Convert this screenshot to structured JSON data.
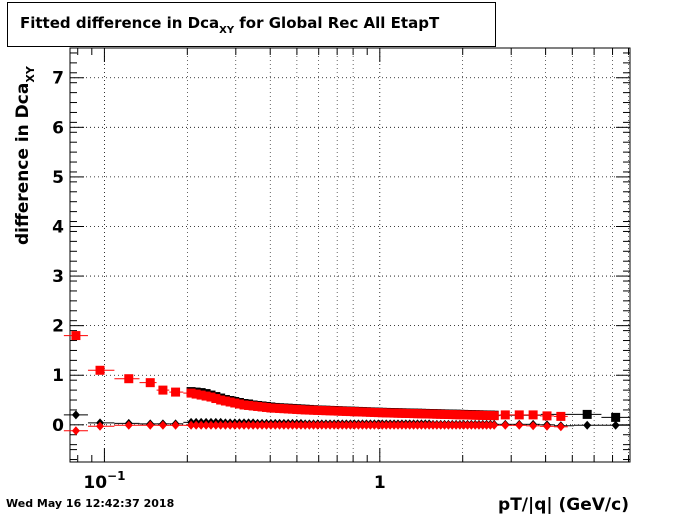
{
  "chart_data": {
    "type": "scatter",
    "title_main": "Fitted difference in Dca",
    "title_sub": "XY",
    "title_rest": " for Global Rec All EtapT",
    "xlabel": "pT/|q| (GeV/c)",
    "ylabel_main": "difference in Dca",
    "ylabel_sub": "XY",
    "x_scale": "log",
    "xlim": [
      0.075,
      8.1
    ],
    "ylim": [
      -0.75,
      7.6
    ],
    "grid": true,
    "y_ticks": [
      {
        "value": 0,
        "label": "0"
      },
      {
        "value": 1,
        "label": "1"
      },
      {
        "value": 2,
        "label": "2"
      },
      {
        "value": 3,
        "label": "3"
      },
      {
        "value": 4,
        "label": "4"
      },
      {
        "value": 5,
        "label": "5"
      },
      {
        "value": 6,
        "label": "6"
      },
      {
        "value": 7,
        "label": "7"
      }
    ],
    "x_tick_labels": [
      {
        "value": 0.1,
        "base": "10",
        "exp": "−1"
      },
      {
        "value": 1,
        "base": "1",
        "exp": ""
      }
    ],
    "series": [
      {
        "marker": "square",
        "color": "#000000",
        "x": [
          0.2064,
          0.2153,
          0.2245,
          0.234,
          0.2438,
          0.2539,
          0.2643,
          0.275,
          0.2861,
          0.2975,
          0.3092,
          0.3213,
          0.3338,
          0.3467,
          0.36,
          0.3736,
          0.3877,
          0.4022,
          0.4172,
          0.4326,
          0.4485,
          0.4649,
          0.4818,
          0.4993,
          0.5172,
          0.5358,
          0.5549,
          0.5746,
          0.5949,
          0.6158,
          0.6374,
          0.6597,
          0.6826,
          0.7063,
          0.7307,
          0.7558,
          0.7818,
          0.8085,
          0.8361,
          0.8646,
          0.8939,
          0.9242,
          0.9554,
          0.9876,
          1.0208,
          1.055,
          1.0903,
          1.1267,
          1.1643,
          1.2031,
          1.2431,
          1.2843,
          1.3268,
          1.3707,
          1.4159,
          1.4625,
          1.5106,
          1.5602,
          1.6113,
          1.6641,
          1.7185,
          1.7745,
          1.8324,
          1.892,
          1.9535,
          2.017,
          2.0824,
          2.1499,
          2.2195,
          2.2913,
          2.3653,
          2.4416,
          2.5203,
          2.6015,
          5.663,
          7.184
        ],
        "y": [
          0.67,
          0.66,
          0.65,
          0.63,
          0.6,
          0.57,
          0.54,
          0.51,
          0.49,
          0.47,
          0.45,
          0.43,
          0.42,
          0.4,
          0.39,
          0.38,
          0.37,
          0.36,
          0.35,
          0.345,
          0.34,
          0.335,
          0.33,
          0.325,
          0.32,
          0.315,
          0.31,
          0.305,
          0.3,
          0.297,
          0.294,
          0.291,
          0.288,
          0.285,
          0.282,
          0.279,
          0.276,
          0.273,
          0.27,
          0.267,
          0.264,
          0.261,
          0.258,
          0.255,
          0.252,
          0.25,
          0.248,
          0.246,
          0.244,
          0.242,
          0.24,
          0.238,
          0.236,
          0.234,
          0.232,
          0.23,
          0.228,
          0.226,
          0.224,
          0.222,
          0.22,
          0.218,
          0.216,
          0.214,
          0.212,
          0.21,
          0.208,
          0.206,
          0.204,
          0.202,
          0.2,
          0.198,
          0.196,
          0.194,
          0.21,
          0.15
        ]
      },
      {
        "marker": "square",
        "color": "#ff0000",
        "x": [
          0.0788,
          0.0964,
          0.1226,
          0.1467,
          0.1631,
          0.1813,
          0.2064,
          0.2153,
          0.2245,
          0.234,
          0.2438,
          0.2539,
          0.2643,
          0.275,
          0.2861,
          0.2975,
          0.3092,
          0.3213,
          0.3338,
          0.3467,
          0.36,
          0.3736,
          0.3877,
          0.4022,
          0.4172,
          0.4326,
          0.4485,
          0.4649,
          0.4818,
          0.4993,
          0.5172,
          0.5358,
          0.5549,
          0.5746,
          0.5949,
          0.6158,
          0.6374,
          0.6597,
          0.6826,
          0.7063,
          0.7307,
          0.7558,
          0.7818,
          0.8085,
          0.8361,
          0.8646,
          0.8939,
          0.9242,
          0.9554,
          0.9876,
          1.0208,
          1.055,
          1.0903,
          1.1267,
          1.1643,
          1.2031,
          1.2431,
          1.2843,
          1.3268,
          1.3707,
          1.4159,
          1.4625,
          1.5106,
          1.5602,
          1.6113,
          1.6641,
          1.7185,
          1.7745,
          1.8324,
          1.892,
          1.9535,
          2.017,
          2.0824,
          2.1499,
          2.2195,
          2.2913,
          2.3653,
          2.4416,
          2.5203,
          2.6015,
          2.855,
          3.2086,
          3.6036,
          4.0467,
          4.5436
        ],
        "y": [
          1.8,
          1.1,
          0.93,
          0.85,
          0.7,
          0.66,
          0.64,
          0.62,
          0.6,
          0.58,
          0.56,
          0.53,
          0.5,
          0.48,
          0.46,
          0.44,
          0.42,
          0.4,
          0.39,
          0.38,
          0.37,
          0.36,
          0.35,
          0.34,
          0.335,
          0.33,
          0.325,
          0.32,
          0.315,
          0.31,
          0.305,
          0.3,
          0.297,
          0.294,
          0.291,
          0.288,
          0.285,
          0.282,
          0.279,
          0.276,
          0.273,
          0.27,
          0.267,
          0.264,
          0.261,
          0.258,
          0.255,
          0.252,
          0.249,
          0.246,
          0.243,
          0.24,
          0.238,
          0.236,
          0.234,
          0.232,
          0.23,
          0.228,
          0.226,
          0.224,
          0.222,
          0.22,
          0.218,
          0.216,
          0.214,
          0.212,
          0.21,
          0.208,
          0.206,
          0.204,
          0.202,
          0.2,
          0.198,
          0.196,
          0.194,
          0.192,
          0.19,
          0.188,
          0.186,
          0.184,
          0.2,
          0.2,
          0.2,
          0.18,
          0.17
        ]
      },
      {
        "marker": "diamond",
        "color": "#000000",
        "x": [
          0.0788,
          0.0964,
          0.1226,
          0.1467,
          0.1631,
          0.1813,
          0.2064,
          0.2153,
          0.2245,
          0.234,
          0.2438,
          0.2539,
          0.2643,
          0.275,
          0.2861,
          0.2975,
          0.3092,
          0.3213,
          0.3338,
          0.3467,
          0.36,
          0.3736,
          0.3877,
          0.4022,
          0.4172,
          0.4326,
          0.4485,
          0.4649,
          0.4818,
          0.4993,
          0.5172,
          0.5358,
          0.5549,
          0.5746,
          0.5949,
          0.6158,
          0.6374,
          0.6597,
          0.6826,
          0.7063,
          0.7307,
          0.7558,
          0.7818,
          0.8085,
          0.8361,
          0.8646,
          0.8939,
          0.9242,
          0.9554,
          0.9876,
          1.0208,
          1.055,
          1.0903,
          1.1267,
          1.1643,
          1.2031,
          1.2431,
          1.2843,
          1.3268,
          1.3707,
          1.4159,
          1.4625,
          1.5106,
          1.5602,
          1.6113,
          1.6641,
          1.7185,
          1.7745,
          1.8324,
          1.892,
          1.9535,
          2.017,
          2.0824,
          2.1499,
          2.2195,
          2.2913,
          2.3653,
          2.4416,
          2.5203,
          2.6015,
          2.855,
          3.2086,
          3.6036,
          4.0467,
          4.5436,
          5.663,
          7.184
        ],
        "y": [
          0.2,
          0.04,
          0.03,
          0.02,
          0.02,
          0.02,
          0.05,
          0.05,
          0.05,
          0.05,
          0.05,
          0.05,
          0.05,
          0.04,
          0.04,
          0.04,
          0.04,
          0.04,
          0.04,
          0.04,
          0.03,
          0.03,
          0.03,
          0.03,
          0.03,
          0.03,
          0.03,
          0.03,
          0.03,
          0.03,
          0.03,
          0.02,
          0.02,
          0.02,
          0.02,
          0.02,
          0.02,
          0.02,
          0.02,
          0.02,
          0.02,
          0.02,
          0.02,
          0.02,
          0.02,
          0.02,
          0.02,
          0.02,
          0.02,
          0.02,
          0.02,
          0.02,
          0.02,
          0.02,
          0.02,
          0.02,
          0.02,
          0.02,
          0.02,
          0.02,
          0.02,
          0.02,
          0.02,
          0.01,
          0.01,
          0.01,
          0.01,
          0.01,
          0.01,
          0.01,
          0.01,
          0.01,
          0.01,
          0.01,
          0.01,
          0.01,
          0.01,
          0.01,
          0.01,
          0.01,
          0.01,
          0.01,
          0.01,
          0.0,
          -0.02,
          -0.01,
          -0.01
        ]
      },
      {
        "marker": "diamond",
        "color": "#ff0000",
        "x": [
          0.0788,
          0.0964,
          0.1226,
          0.1467,
          0.1631,
          0.1813,
          0.2064,
          0.2153,
          0.2245,
          0.234,
          0.2438,
          0.2539,
          0.2643,
          0.275,
          0.2861,
          0.2975,
          0.3092,
          0.3213,
          0.3338,
          0.3467,
          0.36,
          0.3736,
          0.3877,
          0.4022,
          0.4172,
          0.4326,
          0.4485,
          0.4649,
          0.4818,
          0.4993,
          0.5172,
          0.5358,
          0.5549,
          0.5746,
          0.5949,
          0.6158,
          0.6374,
          0.6597,
          0.6826,
          0.7063,
          0.7307,
          0.7558,
          0.7818,
          0.8085,
          0.8361,
          0.8646,
          0.8939,
          0.9242,
          0.9554,
          0.9876,
          1.0208,
          1.055,
          1.0903,
          1.1267,
          1.1643,
          1.2031,
          1.2431,
          1.2843,
          1.3268,
          1.3707,
          1.4159,
          1.4625,
          1.5106,
          1.5602,
          1.6113,
          1.6641,
          1.7185,
          1.7745,
          1.8324,
          1.892,
          1.9535,
          2.017,
          2.0824,
          2.1499,
          2.2195,
          2.2913,
          2.3653,
          2.4416,
          2.5203,
          2.6015,
          2.855,
          3.2086,
          3.6036,
          4.0467,
          4.5436
        ],
        "y": [
          -0.12,
          -0.03,
          -0.01,
          -0.01,
          -0.01,
          -0.01,
          -0.01,
          -0.01,
          -0.01,
          -0.01,
          -0.01,
          -0.01,
          -0.01,
          -0.01,
          -0.01,
          -0.01,
          -0.01,
          -0.01,
          -0.01,
          -0.01,
          -0.01,
          -0.01,
          -0.01,
          -0.01,
          -0.01,
          -0.01,
          -0.01,
          -0.01,
          -0.01,
          -0.01,
          -0.01,
          -0.01,
          -0.01,
          -0.01,
          -0.01,
          -0.01,
          -0.01,
          -0.01,
          -0.01,
          -0.01,
          -0.01,
          -0.01,
          -0.01,
          -0.01,
          -0.01,
          -0.01,
          -0.01,
          -0.01,
          -0.01,
          -0.01,
          -0.01,
          -0.01,
          -0.01,
          -0.01,
          -0.01,
          -0.01,
          -0.01,
          -0.01,
          -0.01,
          -0.01,
          -0.01,
          -0.01,
          -0.01,
          -0.01,
          -0.01,
          -0.01,
          -0.01,
          -0.01,
          -0.01,
          -0.01,
          -0.01,
          -0.01,
          -0.01,
          -0.01,
          -0.01,
          -0.01,
          -0.01,
          -0.01,
          -0.01,
          -0.01,
          -0.01,
          -0.01,
          -0.02,
          -0.03,
          -0.04
        ]
      }
    ]
  },
  "footer": {
    "timestamp": "Wed May 16 12:42:37 2018"
  }
}
